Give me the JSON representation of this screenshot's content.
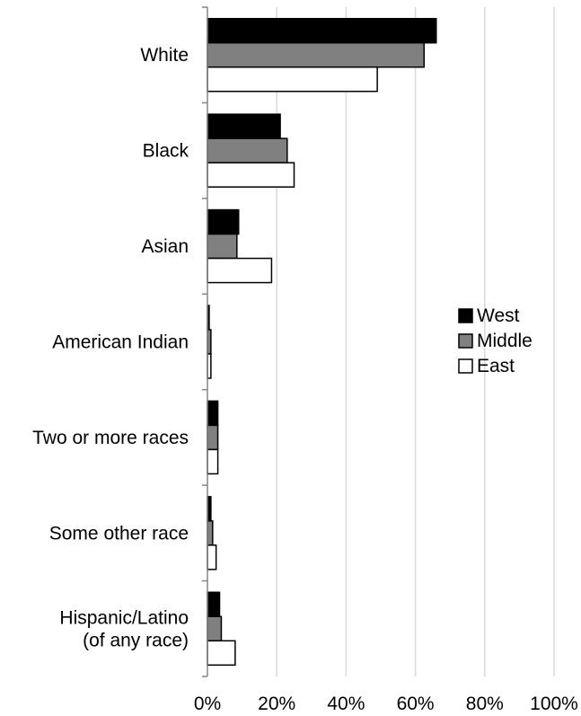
{
  "chart_data": {
    "type": "bar",
    "orientation": "horizontal",
    "categories": [
      [
        "White"
      ],
      [
        "Black"
      ],
      [
        "Asian"
      ],
      [
        "American Indian"
      ],
      [
        "Two or more races"
      ],
      [
        "Some other race"
      ],
      [
        "Hispanic/Latino",
        "(of any race)"
      ]
    ],
    "series": [
      {
        "name": "West",
        "values": [
          66,
          21,
          9,
          0.5,
          3,
          1,
          3.5
        ],
        "color": "#000000"
      },
      {
        "name": "Middle",
        "values": [
          62.5,
          23,
          8.5,
          1,
          3,
          1.5,
          4
        ],
        "color": "#808080"
      },
      {
        "name": "East",
        "values": [
          49,
          25,
          18.5,
          1,
          3,
          2.5,
          8
        ],
        "color": "#ffffff"
      }
    ],
    "xlim": [
      0,
      100
    ],
    "xticks": [
      0,
      20,
      40,
      60,
      80,
      100
    ],
    "xtick_labels": [
      "0%",
      "20%",
      "40%",
      "60%",
      "80%",
      "100%"
    ],
    "grid": true,
    "legend": {
      "placement": "right",
      "entries": [
        "West",
        "Middle",
        "East"
      ]
    }
  }
}
